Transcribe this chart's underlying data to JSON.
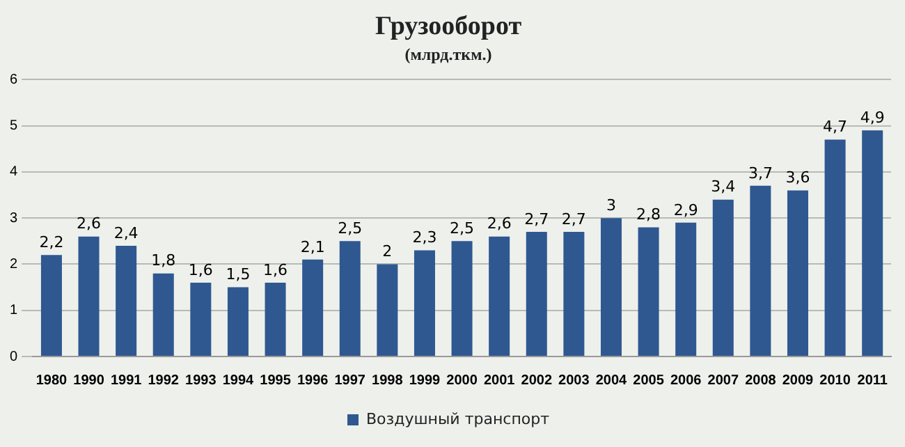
{
  "chart_data": {
    "type": "bar",
    "title": "Грузооборот",
    "subtitle": "(млрд.ткм.)",
    "categories": [
      "1980",
      "1990",
      "1991",
      "1992",
      "1993",
      "1994",
      "1995",
      "1996",
      "1997",
      "1998",
      "1999",
      "2000",
      "2001",
      "2002",
      "2003",
      "2004",
      "2005",
      "2006",
      "2007",
      "2008",
      "2009",
      "2010",
      "2011"
    ],
    "series": [
      {
        "name": "Воздушный транспорт",
        "color": "#2f5891",
        "values": [
          2.2,
          2.6,
          2.4,
          1.8,
          1.6,
          1.5,
          1.6,
          2.1,
          2.5,
          2,
          2.3,
          2.5,
          2.6,
          2.7,
          2.7,
          3,
          2.8,
          2.9,
          3.4,
          3.7,
          3.6,
          4.7,
          4.9
        ],
        "value_labels": [
          "2,2",
          "2,6",
          "2,4",
          "1,8",
          "1,6",
          "1,5",
          "1,6",
          "2,1",
          "2,5",
          "2",
          "2,3",
          "2,5",
          "2,6",
          "2,7",
          "2,7",
          "3",
          "2,8",
          "2,9",
          "3,4",
          "3,7",
          "3,6",
          "4,7",
          "4,9"
        ]
      }
    ],
    "ylim": [
      0,
      6
    ],
    "yticks": [
      0,
      1,
      2,
      3,
      4,
      5,
      6
    ],
    "grid": "y",
    "legend": "bottom"
  }
}
